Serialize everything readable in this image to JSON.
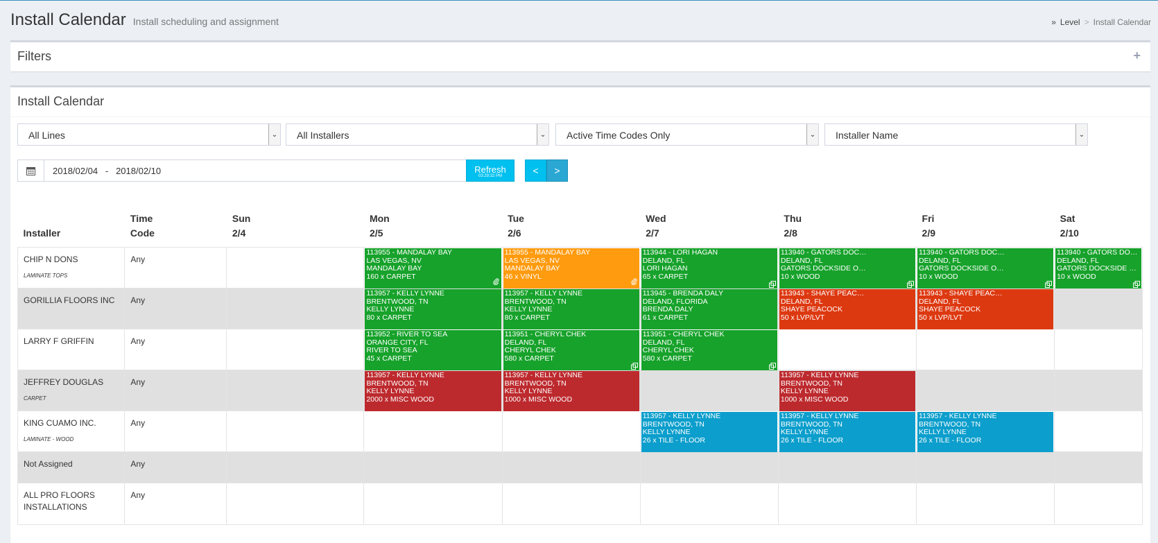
{
  "header": {
    "title": "Install Calendar",
    "subtitle": "Install scheduling and assignment"
  },
  "breadcrumb": {
    "chevron": "»",
    "level": "Level",
    "sep": ">",
    "current": "Install Calendar"
  },
  "filters": {
    "title": "Filters",
    "toggle": "+"
  },
  "calendar": {
    "title": "Install Calendar",
    "selects": [
      "All Lines",
      "All Installers",
      "Active Time Codes Only",
      "Installer Name"
    ],
    "date_range": "2018/02/04   -   2018/02/10",
    "refresh_label": "Refresh",
    "refresh_time": "03:29:32 PM",
    "prev_label": "<",
    "next_label": ">"
  },
  "table": {
    "headers": [
      {
        "line1": "",
        "line2": "Installer"
      },
      {
        "line1": "Time",
        "line2": "Code"
      },
      {
        "line1": "Sun",
        "line2": "2/4"
      },
      {
        "line1": "Mon",
        "line2": "2/5"
      },
      {
        "line1": "Tue",
        "line2": "2/6"
      },
      {
        "line1": "Wed",
        "line2": "2/7"
      },
      {
        "line1": "Thu",
        "line2": "2/8"
      },
      {
        "line1": "Fri",
        "line2": "2/9"
      },
      {
        "line1": "Sat",
        "line2": "2/10"
      }
    ],
    "rows": [
      {
        "installer": "CHIP N DONS",
        "sub": "LAMINATE TOPS",
        "time_code": "Any",
        "events": {
          "mon": {
            "color": "green",
            "icon": "paperclip-icon",
            "lines": [
              "113955 - MANDALAY BAY",
              "LAS VEGAS, NV",
              "MANDALAY BAY",
              "160 x CARPET"
            ]
          },
          "tue": {
            "color": "orange",
            "icon": "paperclip-icon",
            "lines": [
              "113955 - MANDALAY BAY",
              "LAS VEGAS, NV",
              "MANDALAY BAY",
              "46 x VINYL"
            ]
          },
          "wed": {
            "color": "green",
            "icon": "copy-icon",
            "lines": [
              "113944 - LORI HAGAN",
              "DELAND, FL",
              "LORI HAGAN",
              "65 x CARPET"
            ]
          },
          "thu": {
            "color": "green",
            "icon": "copy-icon",
            "lines": [
              "113940 - GATORS DOC…",
              "DELAND, FL",
              "GATORS DOCKSIDE O…",
              "10 x WOOD"
            ]
          },
          "fri": {
            "color": "green",
            "icon": "copy-icon",
            "lines": [
              "113940 - GATORS DOC…",
              "DELAND, FL",
              "GATORS DOCKSIDE O…",
              "10 x WOOD"
            ]
          },
          "sat": {
            "color": "green",
            "icon": "copy-icon",
            "lines": [
              "113940 - GATORS DOC…",
              "DELAND, FL",
              "GATORS DOCKSIDE O…",
              "10 x WOOD"
            ]
          }
        }
      },
      {
        "installer": "GORILLIA FLOORS INC",
        "sub": "",
        "time_code": "Any",
        "events": {
          "mon": {
            "color": "green",
            "icon": "",
            "lines": [
              "113957 - KELLY LYNNE",
              "BRENTWOOD, TN",
              "KELLY LYNNE",
              "80 x CARPET"
            ]
          },
          "tue": {
            "color": "green",
            "icon": "",
            "lines": [
              "113957 - KELLY LYNNE",
              "BRENTWOOD, TN",
              "KELLY LYNNE",
              "80 x CARPET"
            ]
          },
          "wed": {
            "color": "green",
            "icon": "",
            "lines": [
              "113945 - BRENDA DALY",
              "DELAND, FLORIDA",
              "BRENDA DALY",
              "61 x CARPET"
            ]
          },
          "thu": {
            "color": "red",
            "icon": "",
            "lines": [
              "113943 - SHAYE PEAC…",
              "DELAND, FL",
              "SHAYE PEACOCK",
              "50 x LVP/LVT"
            ]
          },
          "fri": {
            "color": "red",
            "icon": "",
            "lines": [
              "113943 - SHAYE PEAC…",
              "DELAND, FL",
              "SHAYE PEACOCK",
              "50 x LVP/LVT"
            ]
          }
        }
      },
      {
        "installer": "LARRY F GRIFFIN",
        "sub": "",
        "time_code": "Any",
        "events": {
          "mon": {
            "color": "green",
            "icon": "",
            "lines": [
              "113952 - RIVER TO SEA",
              "ORANGE CITY, FL",
              "RIVER TO SEA",
              "45 x CARPET"
            ]
          },
          "tue": {
            "color": "green",
            "icon": "copy-icon",
            "lines": [
              "113951 - CHERYL CHEK",
              "DELAND, FL",
              "CHERYL CHEK",
              "580 x CARPET"
            ]
          },
          "wed": {
            "color": "green",
            "icon": "copy-icon",
            "lines": [
              "113951 - CHERYL CHEK",
              "DELAND, FL",
              "CHERYL CHEK",
              "580 x CARPET"
            ]
          }
        }
      },
      {
        "installer": "JEFFREY DOUGLAS",
        "sub": "CARPET",
        "time_code": "Any",
        "events": {
          "mon": {
            "color": "darkred",
            "icon": "",
            "lines": [
              "113957 - KELLY LYNNE",
              "BRENTWOOD, TN",
              "KELLY LYNNE",
              "2000 x MISC WOOD"
            ]
          },
          "tue": {
            "color": "darkred",
            "icon": "",
            "lines": [
              "113957 - KELLY LYNNE",
              "BRENTWOOD, TN",
              "KELLY LYNNE",
              "1000 x MISC WOOD"
            ]
          },
          "thu": {
            "color": "darkred",
            "icon": "",
            "lines": [
              "113957 - KELLY LYNNE",
              "BRENTWOOD, TN",
              "KELLY LYNNE",
              "1000 x MISC WOOD"
            ]
          }
        }
      },
      {
        "installer": "KING CUAMO INC.",
        "sub": "LAMINATE - WOOD",
        "time_code": "Any",
        "events": {
          "wed": {
            "color": "blue",
            "icon": "",
            "lines": [
              "113957 - KELLY LYNNE",
              "BRENTWOOD, TN",
              "KELLY LYNNE",
              "26 x TILE - FLOOR"
            ]
          },
          "thu": {
            "color": "blue",
            "icon": "",
            "lines": [
              "113957 - KELLY LYNNE",
              "BRENTWOOD, TN",
              "KELLY LYNNE",
              "26 x TILE - FLOOR"
            ]
          },
          "fri": {
            "color": "blue",
            "icon": "",
            "lines": [
              "113957 - KELLY LYNNE",
              "BRENTWOOD, TN",
              "KELLY LYNNE",
              "26 x TILE - FLOOR"
            ]
          }
        }
      },
      {
        "installer": "Not Assigned",
        "sub": "",
        "time_code": "Any",
        "events": {}
      },
      {
        "installer": "ALL PRO FLOORS INSTALLATIONS",
        "sub": "",
        "time_code": "Any",
        "events": {}
      }
    ]
  },
  "colors": {
    "green": "#17a22b",
    "orange": "#ff9b0f",
    "red": "#dd3911",
    "darkred": "#bd2a2e",
    "blue": "#0c9ecc",
    "accent": "#00c0ef"
  }
}
